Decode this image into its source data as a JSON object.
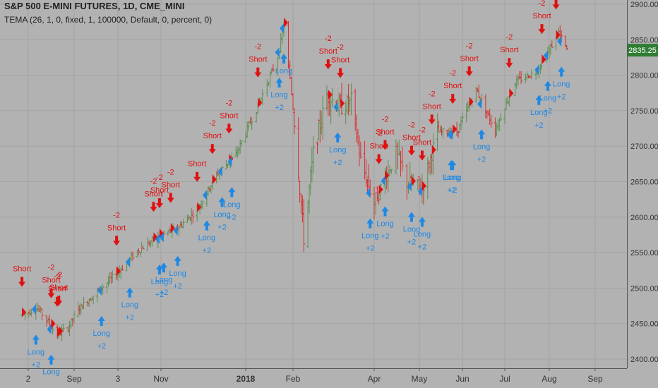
{
  "header": {
    "title": "S&P 500 E-MINI FUTURES, 1D, CME_MINI",
    "indicator": "TEMA (26, 1, 0, fixed, 1, 100000, Default, 0, percent, 0)"
  },
  "colors": {
    "background": "#b2b2b2",
    "grid": "#a3a3a3",
    "up_candle": "#5a8f4e",
    "down_candle": "#d63030",
    "long_signal": "#1e88e5",
    "short_signal": "#e01010",
    "price_tag": "#2e7d32"
  },
  "chart_data": {
    "type": "candlestick",
    "title": "S&P 500 E-MINI FUTURES, 1D, CME_MINI",
    "subtitle": "TEMA (26, 1, 0, fixed, 1, 100000, Default, 0, percent, 0)",
    "x_ticks": [
      "2",
      "Sep",
      "3",
      "Nov",
      "2018",
      "Feb",
      "Apr",
      "May",
      "Jun",
      "Jul",
      "Aug",
      "Sep"
    ],
    "y_ticks": [
      2400,
      2450,
      2500,
      2550,
      2600,
      2650,
      2700,
      2750,
      2800,
      2850,
      2900
    ],
    "ylim": [
      2393,
      2912
    ],
    "last_price": "2835.25",
    "grid": true,
    "price_path": [
      [
        "2017-07-31",
        2462
      ],
      [
        "2017-08-07",
        2474
      ],
      [
        "2017-08-14",
        2455
      ],
      [
        "2017-08-21",
        2434
      ],
      [
        "2017-08-28",
        2445
      ],
      [
        "2017-09-04",
        2470
      ],
      [
        "2017-09-18",
        2495
      ],
      [
        "2017-10-02",
        2520
      ],
      [
        "2017-10-16",
        2552
      ],
      [
        "2017-10-30",
        2572
      ],
      [
        "2017-11-13",
        2585
      ],
      [
        "2017-11-27",
        2610
      ],
      [
        "2017-12-11",
        2660
      ],
      [
        "2017-12-25",
        2688
      ],
      [
        "2018-01-08",
        2752
      ],
      [
        "2018-01-22",
        2825
      ],
      [
        "2018-01-26",
        2870
      ],
      [
        "2018-02-02",
        2735
      ],
      [
        "2018-02-09",
        2570
      ],
      [
        "2018-02-16",
        2690
      ],
      [
        "2018-02-26",
        2770
      ],
      [
        "2018-03-09",
        2755
      ],
      [
        "2018-03-16",
        2765
      ],
      [
        "2018-03-23",
        2680
      ],
      [
        "2018-04-02",
        2620
      ],
      [
        "2018-04-16",
        2690
      ],
      [
        "2018-04-23",
        2650
      ],
      [
        "2018-05-03",
        2640
      ],
      [
        "2018-05-14",
        2720
      ],
      [
        "2018-05-28",
        2720
      ],
      [
        "2018-06-11",
        2780
      ],
      [
        "2018-06-25",
        2722
      ],
      [
        "2018-07-09",
        2790
      ],
      [
        "2018-07-23",
        2805
      ],
      [
        "2018-08-01",
        2835
      ],
      [
        "2018-08-08",
        2860
      ],
      [
        "2018-08-14",
        2835
      ]
    ],
    "signals": [
      {
        "type": "short",
        "date": "2017-07-31",
        "label": "Short",
        "qty": ""
      },
      {
        "type": "long",
        "date": "2017-08-07",
        "label": "Long",
        "qty": "+2"
      },
      {
        "type": "short",
        "date": "2017-08-17",
        "label": "Short",
        "qty": "-2"
      },
      {
        "type": "short",
        "date": "2017-08-21",
        "label": "Short",
        "qty": "-2"
      },
      {
        "type": "short",
        "date": "2017-08-22",
        "label": "Short",
        "qty": "-2"
      },
      {
        "type": "long",
        "date": "2017-08-17",
        "label": "Long",
        "qty": ""
      },
      {
        "type": "long",
        "date": "2017-09-21",
        "label": "Long",
        "qty": "+2"
      },
      {
        "type": "short",
        "date": "2017-10-02",
        "label": "Short",
        "qty": "-2"
      },
      {
        "type": "long",
        "date": "2017-10-11",
        "label": "Long",
        "qty": "+2"
      },
      {
        "type": "short",
        "date": "2017-10-27",
        "label": "Short",
        "qty": "-2"
      },
      {
        "type": "short",
        "date": "2017-10-31",
        "label": "Short",
        "qty": "-2"
      },
      {
        "type": "long",
        "date": "2017-10-31",
        "label": "Long",
        "qty": "+2"
      },
      {
        "type": "long",
        "date": "2017-11-03",
        "label": "Long",
        "qty": "+2"
      },
      {
        "type": "short",
        "date": "2017-11-08",
        "label": "Short",
        "qty": "-2"
      },
      {
        "type": "long",
        "date": "2017-11-13",
        "label": "Long",
        "qty": "+2"
      },
      {
        "type": "short",
        "date": "2017-11-27",
        "label": "Short",
        "qty": ""
      },
      {
        "type": "long",
        "date": "2017-12-04",
        "label": "Long",
        "qty": "+2"
      },
      {
        "type": "short",
        "date": "2017-12-08",
        "label": "Short",
        "qty": "-2"
      },
      {
        "type": "long",
        "date": "2017-12-15",
        "label": "Long",
        "qty": "+2"
      },
      {
        "type": "short",
        "date": "2017-12-20",
        "label": "Short",
        "qty": "-2"
      },
      {
        "type": "long",
        "date": "2017-12-22",
        "label": "Long",
        "qty": "+2"
      },
      {
        "type": "short",
        "date": "2018-01-09",
        "label": "Short",
        "qty": "-2"
      },
      {
        "type": "short",
        "date": "2018-01-26",
        "label": "",
        "qty": ""
      },
      {
        "type": "long",
        "date": "2018-01-23",
        "label": "Long",
        "qty": "+2"
      },
      {
        "type": "long",
        "date": "2018-01-26",
        "label": "Long",
        "qty": ""
      },
      {
        "type": "short",
        "date": "2018-02-27",
        "label": "Short",
        "qty": "-2"
      },
      {
        "type": "long",
        "date": "2018-03-06",
        "label": "Long",
        "qty": "+2"
      },
      {
        "type": "short",
        "date": "2018-03-08",
        "label": "Short",
        "qty": "-2"
      },
      {
        "type": "long",
        "date": "2018-03-30",
        "label": "Long",
        "qty": "+2"
      },
      {
        "type": "short",
        "date": "2018-04-05",
        "label": "Short",
        "qty": "-2"
      },
      {
        "type": "short",
        "date": "2018-04-09",
        "label": "Short",
        "qty": "-2"
      },
      {
        "type": "long",
        "date": "2018-04-09",
        "label": "Long",
        "qty": "+2"
      },
      {
        "type": "short",
        "date": "2018-04-26",
        "label": "Short",
        "qty": "-2"
      },
      {
        "type": "long",
        "date": "2018-04-26",
        "label": "Long",
        "qty": "+2"
      },
      {
        "type": "short",
        "date": "2018-05-03",
        "label": "Short",
        "qty": "-2"
      },
      {
        "type": "long",
        "date": "2018-05-03",
        "label": "Long",
        "qty": "+2"
      },
      {
        "type": "short",
        "date": "2018-05-10",
        "label": "Short",
        "qty": "-2"
      },
      {
        "type": "long",
        "date": "2018-05-24",
        "label": "Long",
        "qty": "+2"
      },
      {
        "type": "short",
        "date": "2018-05-25",
        "label": "Short",
        "qty": "-2"
      },
      {
        "type": "long",
        "date": "2018-05-25",
        "label": "Long",
        "qty": "+2"
      },
      {
        "type": "short",
        "date": "2018-06-06",
        "label": "Short",
        "qty": "-2"
      },
      {
        "type": "long",
        "date": "2018-06-15",
        "label": "Long",
        "qty": "+2"
      },
      {
        "type": "short",
        "date": "2018-07-05",
        "label": "Short",
        "qty": "-2"
      },
      {
        "type": "long",
        "date": "2018-07-25",
        "label": "Long",
        "qty": "+2"
      },
      {
        "type": "short",
        "date": "2018-07-27",
        "label": "Short",
        "qty": "-2"
      },
      {
        "type": "long",
        "date": "2018-07-31",
        "label": "Long",
        "qty": "+2"
      },
      {
        "type": "short",
        "date": "2018-08-06",
        "label": "Short",
        "qty": ""
      },
      {
        "type": "long",
        "date": "2018-08-10",
        "label": "Long",
        "qty": "+2"
      }
    ]
  }
}
